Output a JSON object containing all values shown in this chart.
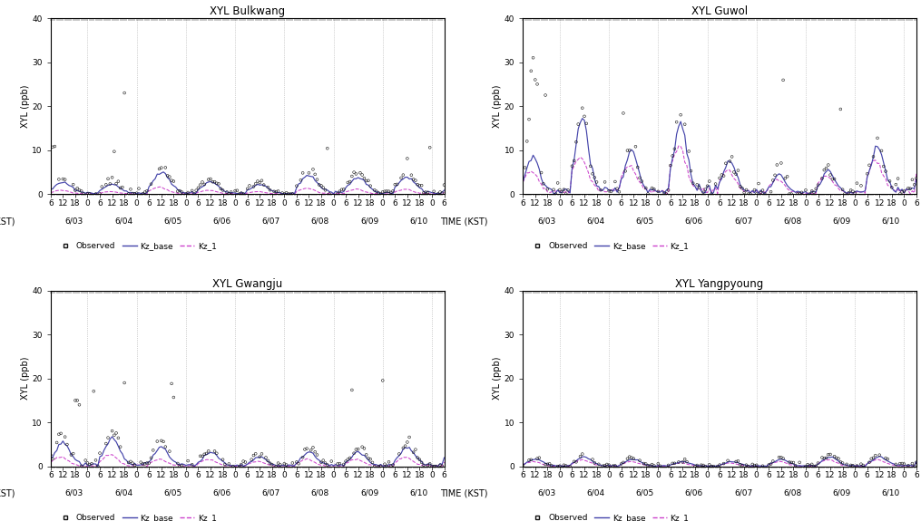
{
  "titles": [
    "XYL Bulkwang",
    "XYL Guwol",
    "XYL Gwangju",
    "XYL Yangpyoung"
  ],
  "ylabel": "XYL (ppb)",
  "xlabel": "TIME (KST)",
  "ylim": [
    0,
    40
  ],
  "yticks": [
    0,
    10,
    20,
    30,
    40
  ],
  "date_labels": [
    "6/03",
    "6/04",
    "6/05",
    "6/06",
    "6/07",
    "6/08",
    "6/09",
    "6/10"
  ],
  "background_color": "#ffffff",
  "obs_color": "#111111",
  "kz_base_color": "#4444aa",
  "kz1_color": "#cc44cc",
  "legend_labels": [
    "Observed",
    "Kz_base",
    "Kz_1"
  ],
  "n_hours": 193,
  "title_fontsize": 8.5,
  "label_fontsize": 7.0,
  "tick_fontsize": 6.5,
  "legend_fontsize": 6.5
}
